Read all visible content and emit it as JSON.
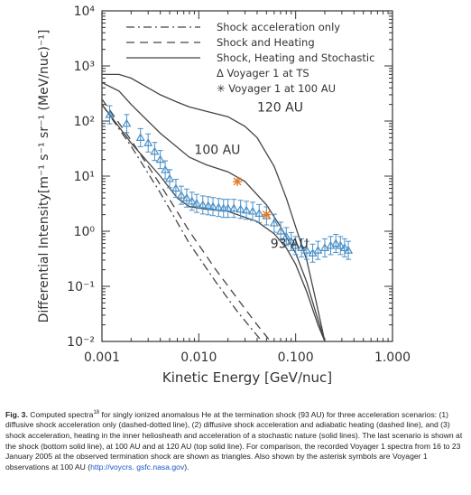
{
  "chart_data": {
    "type": "line",
    "xlabel": "Kinetic Energy [GeV/nuc]",
    "ylabel": "Differential Intensity[m⁻¹ s⁻¹ sr⁻¹ (MeV/nuc)⁻¹]",
    "xscale": "log",
    "yscale": "log",
    "xlim": [
      0.001,
      1.0
    ],
    "ylim": [
      0.01,
      10000
    ],
    "x_ticks": [
      "0.001",
      "0.010",
      "0.100",
      "1.000"
    ],
    "y_ticks": [
      "10⁻²",
      "10⁻¹",
      "10⁰",
      "10¹",
      "10²",
      "10³",
      "10⁴"
    ],
    "legend_position": "top-right",
    "legend": [
      {
        "label": "Shock acceleration only",
        "style": "dash-dot"
      },
      {
        "label": "Shock and Heating",
        "style": "dashed"
      },
      {
        "label": "Shock, Heating and Stochastic",
        "style": "solid"
      },
      {
        "label": "Δ Voyager 1 at TS",
        "style": "triangle"
      },
      {
        "label": "✳ Voyager 1 at 100 AU",
        "style": "asterisk"
      }
    ],
    "curve_labels": [
      {
        "text": "120 AU",
        "x": 0.04,
        "y": 150
      },
      {
        "text": "100 AU",
        "x": 0.009,
        "y": 25
      },
      {
        "text": "93 AU",
        "x": 0.055,
        "y": 0.5
      }
    ],
    "series": [
      {
        "name": "Shock acceleration only",
        "style": "dash-dot",
        "x": [
          0.001,
          0.002,
          0.004,
          0.008,
          0.015,
          0.025,
          0.035,
          0.045
        ],
        "y": [
          200,
          35,
          5,
          0.6,
          0.12,
          0.035,
          0.017,
          0.01
        ]
      },
      {
        "name": "Shock and Heating",
        "style": "dashed",
        "x": [
          0.001,
          0.002,
          0.004,
          0.008,
          0.015,
          0.025,
          0.04,
          0.055
        ],
        "y": [
          250,
          45,
          7,
          1.0,
          0.2,
          0.06,
          0.02,
          0.01
        ]
      },
      {
        "name": "Shock, Heating and Stochastic (93 AU)",
        "style": "solid",
        "x": [
          0.001,
          0.002,
          0.004,
          0.006,
          0.008,
          0.012,
          0.02,
          0.04,
          0.06,
          0.08,
          0.1,
          0.13,
          0.17,
          0.2
        ],
        "y": [
          200,
          40,
          10,
          4,
          2.8,
          2.5,
          2.3,
          1.5,
          0.9,
          0.5,
          0.25,
          0.08,
          0.02,
          0.01
        ]
      },
      {
        "name": "Shock, Heating and Stochastic (100 AU)",
        "style": "solid",
        "x": [
          0.001,
          0.0015,
          0.002,
          0.004,
          0.008,
          0.012,
          0.02,
          0.03,
          0.05,
          0.07,
          0.1,
          0.13,
          0.16,
          0.2
        ],
        "y": [
          500,
          350,
          200,
          60,
          22,
          16,
          12,
          8,
          3,
          1.2,
          0.4,
          0.12,
          0.035,
          0.01
        ]
      },
      {
        "name": "Shock, Heating and Stochastic (120 AU)",
        "style": "solid",
        "x": [
          0.001,
          0.0015,
          0.002,
          0.003,
          0.004,
          0.006,
          0.008,
          0.012,
          0.02,
          0.03,
          0.04,
          0.06,
          0.08,
          0.1,
          0.13,
          0.16,
          0.2
        ],
        "y": [
          700,
          700,
          600,
          400,
          300,
          220,
          180,
          150,
          120,
          80,
          50,
          15,
          4,
          1.2,
          0.3,
          0.06,
          0.01
        ]
      },
      {
        "name": "Voyager 1 at TS",
        "style": "triangle",
        "x": [
          0.0012,
          0.0018,
          0.0025,
          0.003,
          0.0035,
          0.004,
          0.0045,
          0.005,
          0.0058,
          0.0066,
          0.0075,
          0.0085,
          0.0095,
          0.011,
          0.0125,
          0.014,
          0.016,
          0.018,
          0.02,
          0.023,
          0.027,
          0.031,
          0.036,
          0.042,
          0.05,
          0.06,
          0.07,
          0.08,
          0.09,
          0.1,
          0.115,
          0.13,
          0.15,
          0.17,
          0.2,
          0.23,
          0.26,
          0.29,
          0.32,
          0.35
        ],
        "y": [
          130,
          90,
          50,
          40,
          28,
          20,
          13,
          9,
          6,
          4.5,
          4.0,
          3.5,
          3.2,
          3.0,
          2.9,
          2.8,
          2.7,
          2.6,
          2.6,
          2.6,
          2.5,
          2.4,
          2.3,
          2.1,
          1.9,
          1.4,
          1.0,
          0.8,
          0.65,
          0.55,
          0.5,
          0.45,
          0.4,
          0.45,
          0.5,
          0.55,
          0.6,
          0.55,
          0.5,
          0.45
        ]
      },
      {
        "name": "Voyager 1 at 100 AU",
        "style": "asterisk",
        "x": [
          0.025,
          0.05
        ],
        "y": [
          8,
          2
        ]
      }
    ]
  },
  "caption": {
    "label": "Fig. 3.",
    "text_1": " Computed spectra",
    "superscript": "18",
    "text_2": " for singly ionized anomalous He at the termination shock (93 AU) for three acceleration scenarios: (1) diffusive shock acceleration only (dashed-dotted line), (2) diffusive shock acceleration and adiabatic heating (dashed line), and (3) shock acceleration, heating in the inner heliosheath and acceleration of a stochastic nature (solid lines). The last scenario is shown at the shock (bottom solid line), at 100 AU and at 120 AU (top solid line). For comparison, the recorded Voyager 1 spectra from 16 to 23 January 2005 at the observed termination shock are shown as triangles. Also shown by the asterisk symbols are Voyager 1 observations at 100 AU (",
    "link": "http://voycrs. gsfc.nasa.gov",
    "text_3": ")."
  },
  "colors": {
    "data_points": "#4a90c8",
    "asterisk": "#e07a2a",
    "curves": "#444444"
  }
}
